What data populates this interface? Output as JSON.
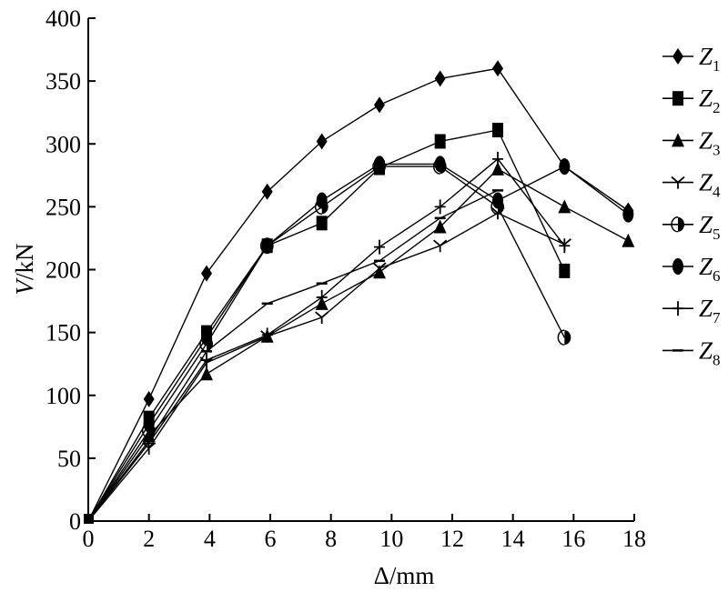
{
  "chart_data": {
    "type": "line",
    "xlabel": "Δ/mm",
    "ylabel_var": "V",
    "ylabel_unit": "/kN",
    "xlim": [
      0,
      18
    ],
    "ylim": [
      0,
      400
    ],
    "xticks": [
      0,
      2,
      4,
      6,
      8,
      10,
      12,
      14,
      16,
      18
    ],
    "yticks": [
      0,
      50,
      100,
      150,
      200,
      250,
      300,
      350,
      400
    ],
    "grid": false,
    "legend_position": "right",
    "series": [
      {
        "name": "Z",
        "sub": "1",
        "marker": "diamond",
        "x": [
          0,
          2,
          3.9,
          5.9,
          7.7,
          9.6,
          11.6,
          13.5,
          15.7,
          17.8
        ],
        "y": [
          0,
          97,
          197,
          262,
          302,
          331,
          352,
          360,
          282,
          247
        ]
      },
      {
        "name": "Z",
        "sub": "2",
        "marker": "square",
        "x": [
          0,
          2,
          3.9,
          5.9,
          7.7,
          9.6,
          11.6,
          13.5,
          15.7
        ],
        "y": [
          0,
          82,
          150,
          219,
          237,
          281,
          302,
          311,
          199
        ]
      },
      {
        "name": "Z",
        "sub": "3",
        "marker": "triangle",
        "x": [
          0,
          2,
          3.9,
          5.9,
          7.7,
          9.6,
          11.6,
          13.5,
          15.7,
          17.8
        ],
        "y": [
          0,
          68,
          117,
          147,
          173,
          198,
          234,
          280,
          250,
          223
        ]
      },
      {
        "name": "Z",
        "sub": "4",
        "marker": "ytick",
        "x": [
          0,
          2,
          3.9,
          5.9,
          7.7,
          9.6,
          11.6,
          13.5,
          15.7
        ],
        "y": [
          0,
          58,
          126,
          147,
          162,
          201,
          219,
          245,
          220
        ]
      },
      {
        "name": "Z",
        "sub": "5",
        "marker": "halfcircle",
        "x": [
          0,
          2,
          3.9,
          5.9,
          7.7,
          9.6,
          11.6,
          13.5,
          15.7
        ],
        "y": [
          0,
          72,
          141,
          219,
          250,
          282,
          282,
          250,
          146
        ]
      },
      {
        "name": "Z",
        "sub": "6",
        "marker": "ellipse",
        "x": [
          0,
          2,
          3.9,
          5.9,
          7.7,
          9.6,
          11.6,
          13.5,
          15.7,
          17.8
        ],
        "y": [
          0,
          77,
          146,
          219,
          255,
          284,
          284,
          255,
          282,
          244
        ]
      },
      {
        "name": "Z",
        "sub": "7",
        "marker": "plus",
        "x": [
          0,
          2,
          3.9,
          5.9,
          7.7,
          9.6,
          11.6,
          13.5,
          15.7
        ],
        "y": [
          0,
          62,
          128,
          148,
          178,
          218,
          250,
          288,
          219
        ]
      },
      {
        "name": "Z",
        "sub": "8",
        "marker": "dash",
        "x": [
          0,
          2,
          3.9,
          5.9,
          7.7,
          9.6,
          11.6,
          13.5
        ],
        "y": [
          0,
          64,
          135,
          173,
          189,
          207,
          241,
          263
        ]
      }
    ]
  }
}
